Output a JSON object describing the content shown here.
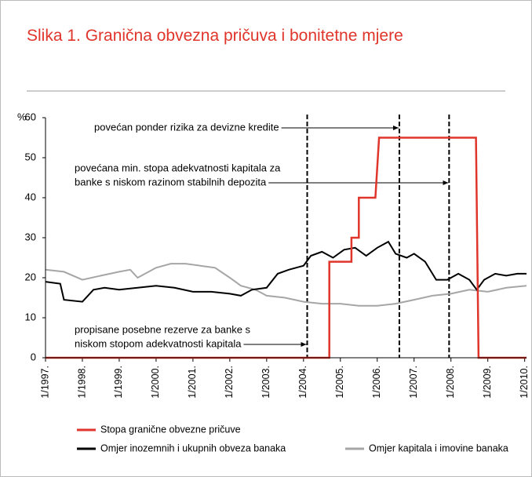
{
  "chart_data": {
    "type": "line",
    "title": "Slika 1. Granična obvezna pričuva i bonitetne mjere",
    "y_unit": "%",
    "xlim": [
      1997,
      2010.05
    ],
    "ylim": [
      0,
      60
    ],
    "yticks": [
      0,
      10,
      20,
      30,
      40,
      50,
      60
    ],
    "xticks": [
      {
        "value": 1997,
        "label": "1/1997."
      },
      {
        "value": 1998,
        "label": "1/1998."
      },
      {
        "value": 1999,
        "label": "1/1999."
      },
      {
        "value": 2000,
        "label": "1/2000."
      },
      {
        "value": 2001,
        "label": "1/2001."
      },
      {
        "value": 2002,
        "label": "1/2002."
      },
      {
        "value": 2003,
        "label": "1/2003."
      },
      {
        "value": 2004,
        "label": "1/2004."
      },
      {
        "value": 2005,
        "label": "1/2005."
      },
      {
        "value": 2006,
        "label": "1/2006."
      },
      {
        "value": 2007,
        "label": "1/2007."
      },
      {
        "value": 2008,
        "label": "1/2008."
      },
      {
        "value": 2009,
        "label": "1/2009."
      },
      {
        "value": 2010,
        "label": "1/2010."
      }
    ],
    "grid": false,
    "series": [
      {
        "name": "Stopa granične obvezne pričuve",
        "color": "#e0352b",
        "x": [
          1997,
          2004.7,
          2004.7,
          2005.3,
          2005.3,
          2005.5,
          2005.5,
          2005.95,
          2006.05,
          2008.68,
          2008.75,
          2010.05
        ],
        "values": [
          0,
          0,
          24,
          24,
          30,
          30,
          40,
          40,
          55,
          55,
          0,
          0
        ]
      },
      {
        "name": "Omjer inozemnih i ukupnih obveza banaka",
        "color": "#000000",
        "x": [
          1997,
          1997.4,
          1997.5,
          1998,
          1998.3,
          1998.6,
          1999,
          1999.5,
          2000,
          2000.5,
          2001,
          2001.5,
          2002,
          2002.3,
          2002.6,
          2003,
          2003.3,
          2003.6,
          2004,
          2004.2,
          2004.5,
          2004.8,
          2005.1,
          2005.4,
          2005.7,
          2006,
          2006.3,
          2006.5,
          2006.8,
          2007,
          2007.3,
          2007.6,
          2007.9,
          2008.2,
          2008.5,
          2008.7,
          2008.9,
          2009.2,
          2009.5,
          2009.8,
          2010.05
        ],
        "values": [
          19,
          18.5,
          14.5,
          14,
          17,
          17.5,
          17,
          17.5,
          18,
          17.5,
          16.5,
          16.5,
          16,
          15.5,
          17,
          17.5,
          21,
          22,
          23,
          25.5,
          26.5,
          25,
          27,
          27.5,
          25.5,
          27.5,
          29,
          26,
          25,
          26,
          24,
          19.5,
          19.5,
          21,
          19.5,
          17,
          19.5,
          21,
          20.5,
          21,
          21
        ]
      },
      {
        "name": "Omjer kapitala i imovine banaka",
        "color": "#a6a6a6",
        "x": [
          1997,
          1997.5,
          1998,
          1998.5,
          1999,
          1999.3,
          1999.5,
          2000,
          2000.4,
          2000.8,
          2001.2,
          2001.6,
          2002,
          2002.3,
          2002.7,
          2003,
          2003.5,
          2004,
          2004.5,
          2005,
          2005.5,
          2006,
          2006.5,
          2007,
          2007.5,
          2008,
          2008.5,
          2009,
          2009.5,
          2010.05
        ],
        "values": [
          22,
          21.5,
          19.5,
          20.5,
          21.5,
          22,
          20,
          22.5,
          23.5,
          23.5,
          23,
          22.5,
          20,
          18,
          17,
          15.5,
          15,
          14,
          13.5,
          13.5,
          13,
          13,
          13.5,
          14.5,
          15.5,
          16,
          17,
          16.5,
          17.5,
          18
        ]
      }
    ],
    "events": [
      {
        "x": 2004.1,
        "label": [
          "propisane posebne rezerve za banke s",
          "niskom stopom adekvatnosti kapitala"
        ]
      },
      {
        "x": 2006.6,
        "label": [
          "povećan ponder rizika za devizne kredite"
        ]
      },
      {
        "x": 2007.95,
        "label": [
          "povećana min. stopa adekvatnosti kapitala za",
          "banke s niskom razinom stabilnih depozita"
        ]
      }
    ]
  }
}
